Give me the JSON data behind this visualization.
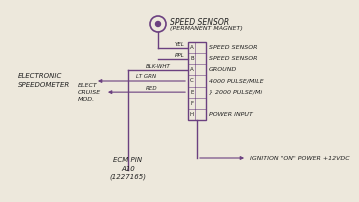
{
  "bg_color": "#ede8dc",
  "line_color": "#6b4080",
  "text_color": "#222222",
  "box_letters": [
    "A",
    "B",
    "A",
    "C",
    "E",
    "F",
    "H"
  ],
  "box_descs": [
    "SPEED SENSOR",
    "SPEED SENSOR",
    "GROUND",
    "4000 PULSE/MILE",
    "} 2000 PULSE/Mi",
    "",
    "POWER INPUT"
  ],
  "wire_labels": [
    "YEL",
    "PPL",
    "BLK-WHT",
    "LT GRN",
    "RED"
  ],
  "ignition_label": "IGNITION \"ON\" POWER +12VDC",
  "ecm_label": [
    "ECM PIN",
    "A10",
    "(1227165)"
  ],
  "sensor_title1": "SPEED SENSOR",
  "sensor_title2": "(PERMANENT MAGNET)",
  "left1a": "ELECTRONIC",
  "left1b": "SPEEDOMETER",
  "left2a": "ELECT",
  "left2b": "CRUISE",
  "left2c": "MOD."
}
